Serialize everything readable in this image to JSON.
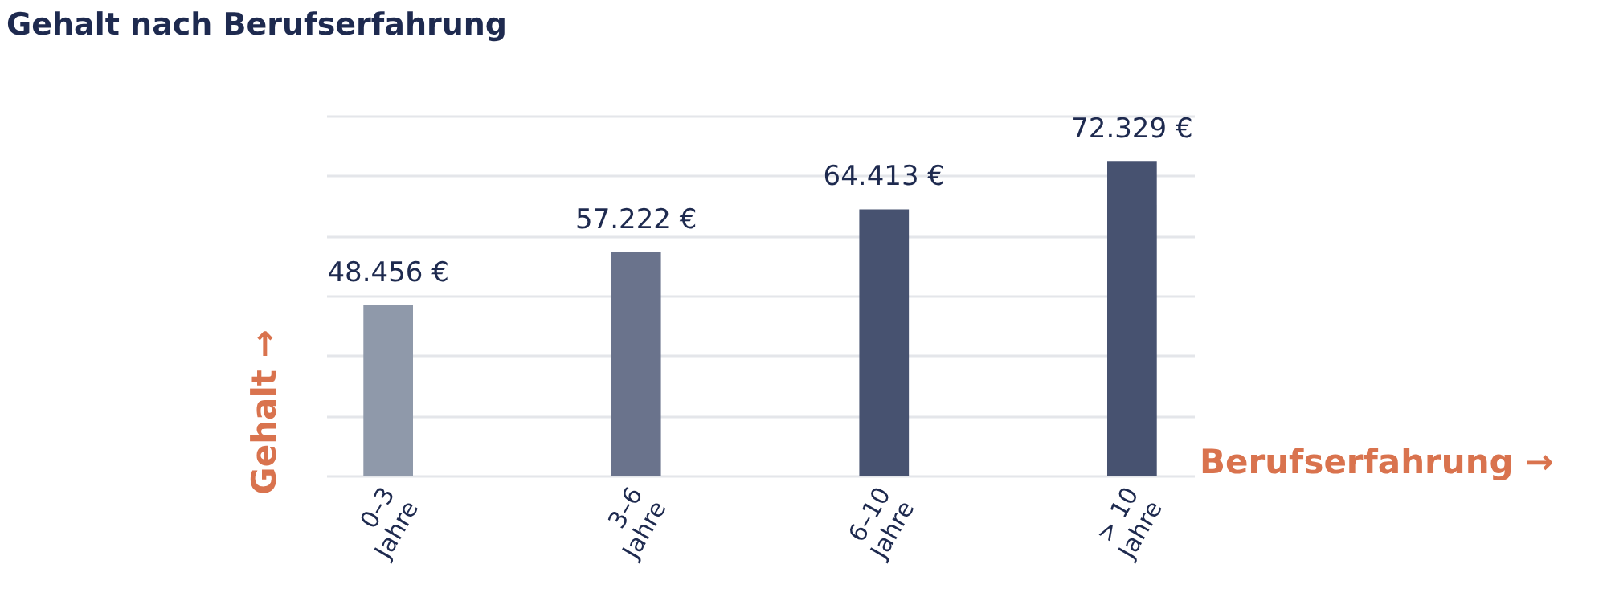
{
  "chart_data": {
    "type": "bar",
    "title": "Gehalt nach Berufserfahrung",
    "xlabel": "Berufserfahrung →",
    "ylabel": "Gehalt →",
    "categories": [
      "0–3 Jahre",
      "3–6 Jahre",
      "6–10 Jahre",
      "> 10 Jahre"
    ],
    "values": [
      48456,
      57222,
      64413,
      72329
    ],
    "colors": [
      "#8f99aa",
      "#6a738c",
      "#475270",
      "#475270"
    ],
    "value_labels": [
      "48.456 €",
      "57.222 €",
      "64.413 €",
      "72.329 €"
    ],
    "ylim": [
      20000,
      80000
    ],
    "yticks": [
      {
        "value": 20000,
        "label": null
      },
      {
        "value": 30000,
        "label": null
      },
      {
        "value": 40000,
        "label": null
      },
      {
        "value": 50000,
        "label": null
      },
      {
        "value": 60000,
        "label": null
      },
      {
        "value": 70000,
        "label": null
      },
      {
        "value": 80000,
        "label": null
      }
    ],
    "grid": "y",
    "tick_labels": "x",
    "legend": false
  }
}
